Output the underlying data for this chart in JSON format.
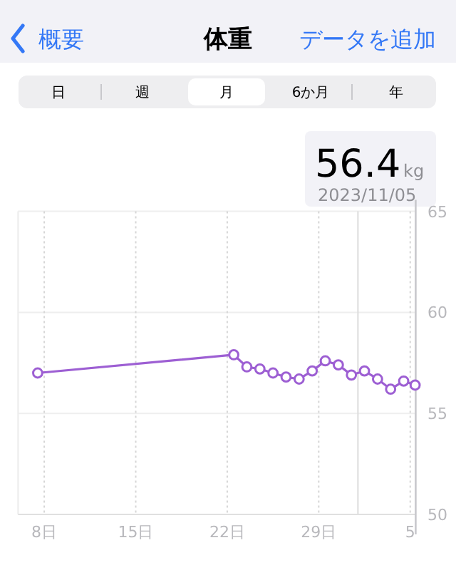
{
  "chart_data": {
    "type": "line",
    "title": "体重",
    "annotations": [
      "概要",
      "データを追加",
      "日",
      "週",
      "月",
      "6か月",
      "年",
      "56.4",
      "kg",
      "2023/11/05"
    ],
    "x": [
      "2023-10-07T12:00",
      "2023-10-22T12:00",
      "2023-10-23T12:00",
      "2023-10-24T12:00",
      "2023-10-25T12:00",
      "2023-10-26T12:00",
      "2023-10-27T12:00",
      "2023-10-28T12:00",
      "2023-10-29T12:00",
      "2023-10-30T12:00",
      "2023-10-31T12:00",
      "2023-11-01T12:00",
      "2023-11-02T12:00",
      "2023-11-03T12:00",
      "2023-11-04T12:00",
      "2023-11-05T09:00"
    ],
    "series": [
      {
        "color": "#9d5fd3",
        "values": [
          57.0,
          57.9,
          57.3,
          57.2,
          57.0,
          56.8,
          56.7,
          57.1,
          57.6,
          57.4,
          56.9,
          57.1,
          56.7,
          56.2,
          56.6,
          56.4
        ]
      }
    ],
    "xlim": [
      "2023-10-06T00:00",
      "2023-11-05T10:00"
    ],
    "xticks": [
      {
        "value": "2023-10-08",
        "label": "8日"
      },
      {
        "value": "2023-10-15",
        "label": "15日"
      },
      {
        "value": "2023-10-22",
        "label": "22日"
      },
      {
        "value": "2023-10-29",
        "label": "29日"
      },
      {
        "value": "2023-11-05",
        "label": "5"
      }
    ],
    "ylim": [
      50,
      65
    ],
    "yticks": [
      50,
      55,
      60,
      65
    ],
    "ref_lines": [
      {
        "axis": "x",
        "value": "2023-11-01",
        "color": "#dcdcdc"
      }
    ],
    "grid": true,
    "marker": "circle",
    "line_style": "solid"
  }
}
